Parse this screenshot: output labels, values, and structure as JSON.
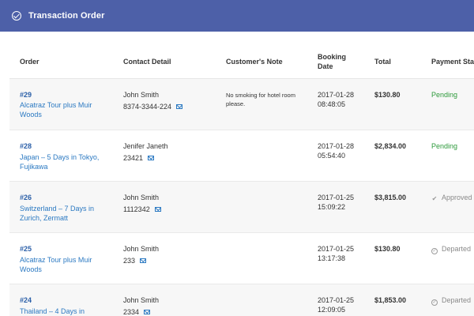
{
  "header": {
    "title": "Transaction Order",
    "icon": "check-circle-icon"
  },
  "columns": {
    "order": "Order",
    "contact": "Contact Detail",
    "note": "Customer's Note",
    "booking_date_line1": "Booking",
    "booking_date_line2": "Date",
    "total": "Total",
    "payment_status": "Payment Status"
  },
  "rows": [
    {
      "id": "#29",
      "name": "Alcatraz Tour plus Muir Woods",
      "contact_name": "John Smith",
      "contact_phone": "8374-3344-224",
      "note": "No smoking for hotel room please.",
      "date": "2017-01-28",
      "time": "08:48:05",
      "total": "$130.80",
      "status": "Pending",
      "status_icon": ""
    },
    {
      "id": "#28",
      "name": "Japan – 5 Days in Tokyo, Fujikawa",
      "contact_name": "Jenifer Janeth",
      "contact_phone": "23421",
      "note": "",
      "date": "2017-01-28",
      "time": "05:54:40",
      "total": "$2,834.00",
      "status": "Pending",
      "status_icon": ""
    },
    {
      "id": "#26",
      "name": "Switzerland – 7 Days in Zurich, Zermatt",
      "contact_name": "John Smith",
      "contact_phone": "1112342",
      "note": "",
      "date": "2017-01-25",
      "time": "15:09:22",
      "total": "$3,815.00",
      "status": "Approved",
      "status_icon": "check-icon"
    },
    {
      "id": "#25",
      "name": "Alcatraz Tour plus Muir Woods",
      "contact_name": "John Smith",
      "contact_phone": "233",
      "note": "",
      "date": "2017-01-25",
      "time": "13:17:38",
      "total": "$130.80",
      "status": "Departed",
      "status_icon": "check-circle-icon"
    },
    {
      "id": "#24",
      "name": "Thailand – 4 Days in",
      "contact_name": "John Smith",
      "contact_phone": "2334",
      "note": "",
      "date": "2017-01-25",
      "time": "12:09:05",
      "total": "$1,853.00",
      "status": "Departed",
      "status_icon": "check-circle-icon"
    }
  ],
  "colors": {
    "header_bg": "#4d60a8",
    "link": "#2b79c2",
    "pending": "#2e9a3c",
    "muted": "#8a8a8a"
  }
}
